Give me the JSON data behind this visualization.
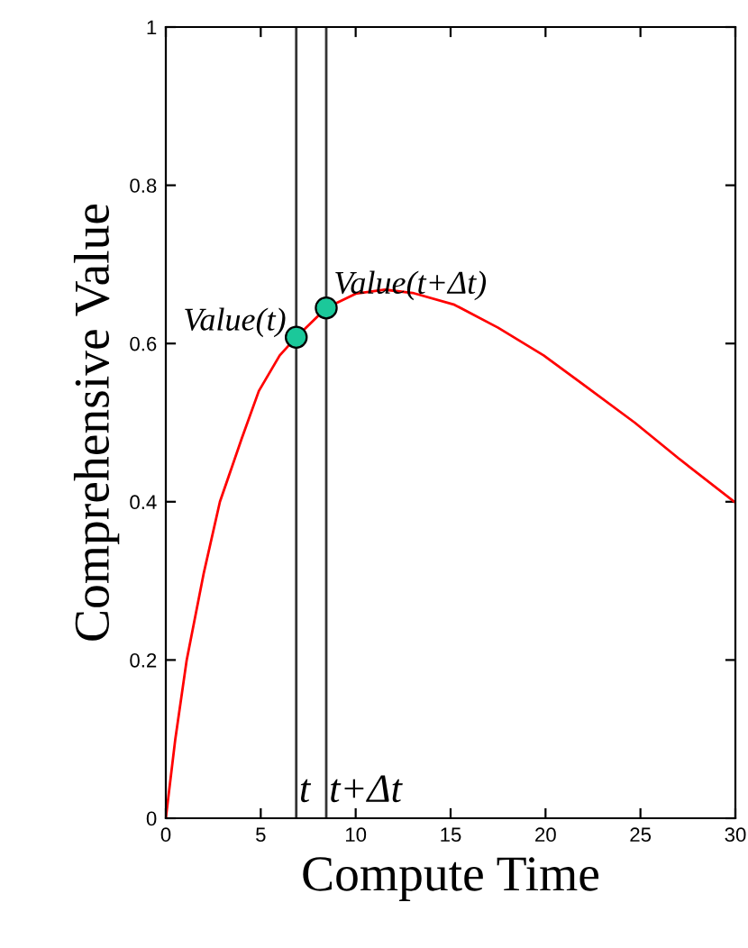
{
  "chart_data": {
    "type": "line",
    "xlabel": "Compute Time",
    "ylabel": "Comprehensive Value",
    "xlim": [
      0,
      30
    ],
    "ylim": [
      0,
      1
    ],
    "xticks": [
      0,
      5,
      10,
      15,
      20,
      25,
      30
    ],
    "yticks": [
      0,
      0.2,
      0.4,
      0.6,
      0.8,
      1
    ],
    "grid": false,
    "series": [
      {
        "color": "#ff0000",
        "marker": "none",
        "line_style": "solid",
        "x": [
          0,
          0.5,
          1.1,
          2,
          2.85,
          4,
          4.9,
          6,
          6.87,
          8.45,
          10,
          11.55,
          13,
          15.2,
          17.5,
          19.9,
          22,
          24.7,
          27,
          30
        ],
        "values": [
          0,
          0.1,
          0.2,
          0.31,
          0.4,
          0.48,
          0.54,
          0.585,
          0.608,
          0.645,
          0.663,
          0.668,
          0.664,
          0.649,
          0.62,
          0.585,
          0.548,
          0.5,
          0.455,
          0.399
        ]
      },
      {
        "type": "scatter",
        "color": "#1bc89a",
        "marker": "circle",
        "x": [
          6.87,
          8.45
        ],
        "values": [
          0.608,
          0.645
        ]
      }
    ],
    "ref_lines": [
      {
        "axis": "x",
        "value": 6.87,
        "label": "t",
        "color": "#333333",
        "line_style": "solid"
      },
      {
        "axis": "x",
        "value": 8.45,
        "label": "t+Δt",
        "color": "#333333",
        "line_style": "solid"
      }
    ],
    "annotations": [
      {
        "text": "Value(t)",
        "x": 6.87,
        "y": 0.608
      },
      {
        "text": "Value(t+Δt)",
        "x": 8.45,
        "y": 0.645
      }
    ]
  }
}
